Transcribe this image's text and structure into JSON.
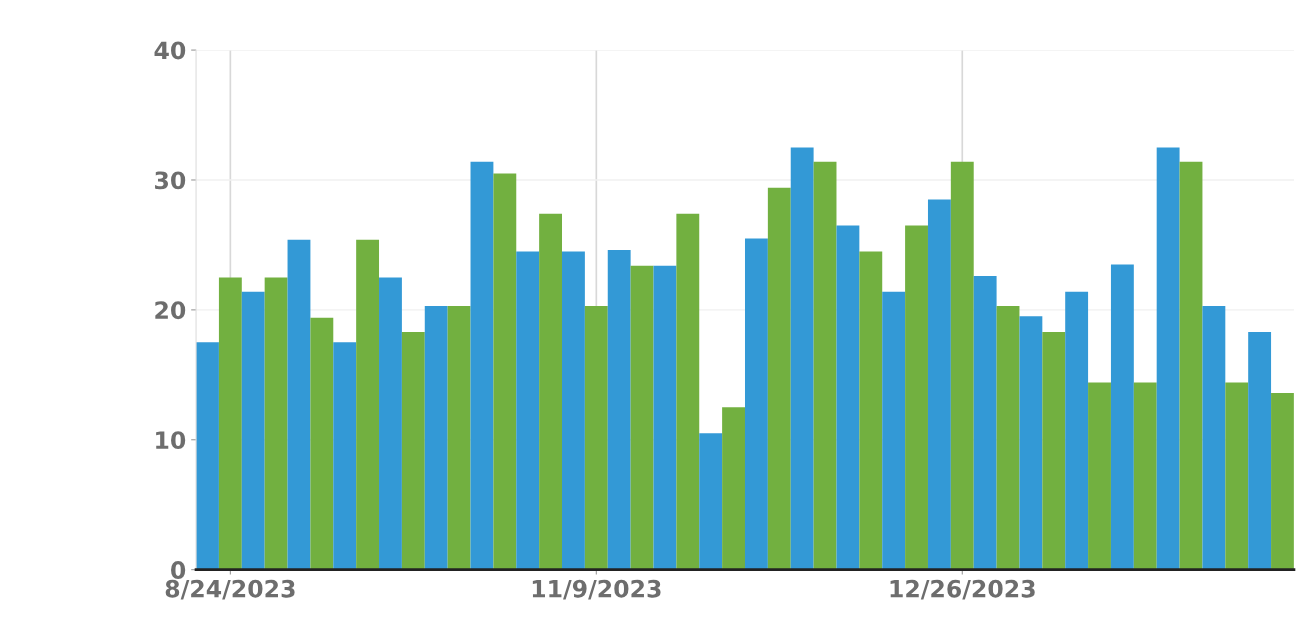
{
  "chart_data": {
    "type": "bar",
    "categories": [
      null,
      "8/24/2023",
      null,
      null,
      null,
      null,
      null,
      null,
      null,
      null,
      null,
      null,
      null,
      null,
      null,
      null,
      null,
      "11/9/2023",
      null,
      null,
      null,
      null,
      null,
      null,
      null,
      null,
      null,
      null,
      null,
      null,
      null,
      null,
      null,
      "12/26/2023",
      null,
      null,
      null,
      null,
      null,
      null,
      null,
      null,
      null,
      null,
      null,
      null,
      null,
      null
    ],
    "values": [
      17.5,
      22.5,
      21.4,
      22.5,
      25.4,
      19.4,
      17.5,
      25.4,
      22.5,
      18.3,
      20.3,
      20.3,
      31.4,
      30.5,
      24.5,
      27.4,
      24.5,
      20.3,
      24.6,
      23.4,
      23.4,
      27.4,
      10.5,
      12.5,
      25.5,
      29.4,
      32.5,
      31.4,
      26.5,
      24.5,
      21.4,
      26.5,
      28.5,
      31.4,
      22.6,
      20.3,
      19.5,
      18.3,
      21.4,
      14.4,
      23.5,
      14.4,
      32.5,
      31.4,
      20.3,
      14.4,
      18.3,
      13.6
    ],
    "colors": [
      "#3399d6",
      "#72b040",
      "#3399d6",
      "#72b040",
      "#3399d6",
      "#72b040",
      "#3399d6",
      "#72b040",
      "#3399d6",
      "#72b040",
      "#3399d6",
      "#72b040",
      "#3399d6",
      "#72b040",
      "#3399d6",
      "#72b040",
      "#3399d6",
      "#72b040",
      "#3399d6",
      "#72b040",
      "#3399d6",
      "#72b040",
      "#3399d6",
      "#72b040",
      "#3399d6",
      "#72b040",
      "#3399d6",
      "#72b040",
      "#3399d6",
      "#72b040",
      "#3399d6",
      "#72b040",
      "#3399d6",
      "#72b040",
      "#3399d6",
      "#72b040",
      "#3399d6",
      "#72b040",
      "#3399d6",
      "#72b040",
      "#3399d6",
      "#72b040",
      "#3399d6",
      "#72b040",
      "#3399d6",
      "#72b040",
      "#3399d6",
      "#72b040"
    ],
    "ylim": [
      0,
      40
    ],
    "yticks": [
      0,
      10,
      20,
      30,
      40
    ],
    "grid": true
  }
}
